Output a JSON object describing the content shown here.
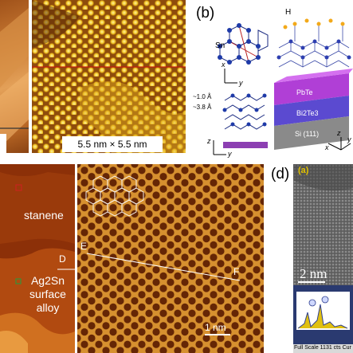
{
  "panel_b": {
    "label": "(b)",
    "element_sn": "Sn",
    "element_h": "H",
    "dist1": "~1.0 Å",
    "dist2": "~3.8 Å",
    "layers": [
      "PbTe",
      "Bi2Te3",
      "Si (111)"
    ],
    "axes": {
      "x": "x",
      "y": "y",
      "z": "z"
    }
  },
  "panel_a": {
    "scale_label": "5.5 nm × 5.5 nm"
  },
  "panel_c": {
    "region_top": "stanene",
    "region_bottom_line1": "Ag2Sn",
    "region_bottom_line2": "surface",
    "region_bottom_line3": "alloy",
    "marker_d": "D",
    "marker_e": "E",
    "marker_f": "F",
    "scale": "1 nm"
  },
  "panel_d": {
    "label": "(d)",
    "inner_label": "(a)",
    "scale": "2 nm",
    "spectrum_caption": "Full Scale 1131 cts Cur"
  }
}
